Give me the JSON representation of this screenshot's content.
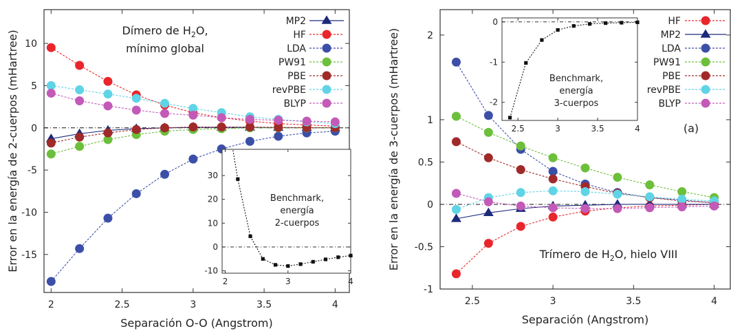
{
  "colors": {
    "MP2": "#1c2a7c",
    "HF": "#e8262b",
    "LDA": "#3c4fa8",
    "PW91": "#6cbf3a",
    "PBE": "#a02a2a",
    "revPBE": "#5fd4e6",
    "BLYP": "#c35ab8",
    "benchmark": "#111111"
  },
  "chart_data": [
    {
      "type": "line",
      "annotation": {
        "line1": "Dímero de H2O,",
        "line2": "mínimo global"
      },
      "xlabel": "Separación O-O (Angstrom)",
      "ylabel": "Error en la energía de 2-cuerpos (mHartree)",
      "xlim": [
        1.95,
        4.1
      ],
      "ylim": [
        -19.5,
        14
      ],
      "xticks": [
        "2",
        "2.5",
        "3",
        "3.5",
        "4"
      ],
      "yticks": [
        "-15",
        "-10",
        "-5",
        "0",
        "5",
        "10"
      ],
      "legend_position": "top-right",
      "x": [
        2.0,
        2.2,
        2.4,
        2.6,
        2.8,
        3.0,
        3.2,
        3.4,
        3.6,
        3.8,
        4.0
      ],
      "series": [
        {
          "name": "MP2",
          "marker": "triangle",
          "values": [
            -1.3,
            -0.7,
            -0.3,
            -0.1,
            0.0,
            0.05,
            0.05,
            0.05,
            0.03,
            0.02,
            0.01
          ]
        },
        {
          "name": "HF",
          "marker": "circle",
          "values": [
            9.5,
            7.4,
            5.5,
            3.9,
            2.7,
            1.8,
            1.2,
            0.8,
            0.5,
            0.35,
            0.2
          ]
        },
        {
          "name": "LDA",
          "marker": "circle",
          "values": [
            -18.2,
            -14.3,
            -10.7,
            -7.8,
            -5.5,
            -3.7,
            -2.5,
            -1.6,
            -1.0,
            -0.6,
            -0.4
          ]
        },
        {
          "name": "PW91",
          "marker": "circle",
          "values": [
            -3.1,
            -2.2,
            -1.4,
            -0.8,
            -0.4,
            -0.2,
            -0.1,
            0.0,
            0.0,
            0.0,
            0.0
          ]
        },
        {
          "name": "PBE",
          "marker": "circle",
          "values": [
            -1.8,
            -1.1,
            -0.6,
            -0.2,
            0.0,
            0.1,
            0.1,
            0.1,
            0.05,
            0.03,
            0.02
          ]
        },
        {
          "name": "revPBE",
          "marker": "circle",
          "values": [
            5.0,
            4.5,
            4.0,
            3.5,
            2.9,
            2.3,
            1.8,
            1.3,
            1.0,
            0.7,
            0.5
          ]
        },
        {
          "name": "BLYP",
          "marker": "circle",
          "values": [
            4.1,
            3.2,
            2.6,
            2.1,
            1.7,
            1.5,
            1.2,
            1.0,
            0.9,
            0.8,
            0.7
          ]
        }
      ],
      "inset": {
        "type": "line",
        "annotation": {
          "line1": "Benchmark,",
          "line2": "energía",
          "line3": "2-cuerpos"
        },
        "xlim": [
          1.95,
          4.0
        ],
        "ylim": [
          -11,
          41
        ],
        "xticks": [
          "2",
          "3",
          "4"
        ],
        "yticks": [
          "-10",
          "0",
          "10",
          "20",
          "30"
        ],
        "x": [
          2.0,
          2.2,
          2.4,
          2.6,
          2.8,
          3.0,
          3.2,
          3.4,
          3.6,
          3.8,
          4.0
        ],
        "values": [
          60,
          28.5,
          4.5,
          -5.0,
          -7.5,
          -8.0,
          -7.2,
          -6.2,
          -5.2,
          -4.3,
          -3.6
        ]
      }
    },
    {
      "type": "line",
      "annotation": {
        "text": "Trímero de H2O, hielo VIII"
      },
      "panel_label": "(a)",
      "xlabel": "Separación (Angstrom)",
      "ylabel": "Error en la energía de 3-cuerpos (mHartree)",
      "xlim": [
        2.3,
        4.1
      ],
      "ylim": [
        -1.0,
        2.3
      ],
      "xticks": [
        "2.5",
        "3",
        "3.5",
        "4"
      ],
      "yticks": [
        "-1",
        "-0.5",
        "0",
        "0.5",
        "1",
        "2"
      ],
      "legend_position": "top-right",
      "x": [
        2.4,
        2.6,
        2.8,
        3.0,
        3.2,
        3.4,
        3.6,
        3.8,
        4.0
      ],
      "series": [
        {
          "name": "HF",
          "marker": "circle",
          "values": [
            -0.82,
            -0.46,
            -0.26,
            -0.15,
            -0.08,
            -0.04,
            -0.02,
            -0.01,
            0.0
          ]
        },
        {
          "name": "MP2",
          "marker": "triangle",
          "values": [
            -0.17,
            -0.1,
            -0.05,
            -0.02,
            -0.01,
            0.0,
            0.0,
            0.0,
            0.0
          ]
        },
        {
          "name": "LDA",
          "marker": "circle",
          "values": [
            1.68,
            1.05,
            0.65,
            0.39,
            0.24,
            0.14,
            0.08,
            0.05,
            0.02
          ]
        },
        {
          "name": "PW91",
          "marker": "circle",
          "values": [
            1.04,
            0.85,
            0.69,
            0.55,
            0.43,
            0.32,
            0.23,
            0.15,
            0.08
          ]
        },
        {
          "name": "PBE",
          "marker": "circle",
          "values": [
            0.74,
            0.55,
            0.41,
            0.3,
            0.21,
            0.13,
            0.08,
            0.04,
            0.02
          ]
        },
        {
          "name": "revPBE",
          "marker": "circle",
          "values": [
            -0.06,
            0.08,
            0.14,
            0.16,
            0.15,
            0.12,
            0.09,
            0.06,
            0.04
          ]
        },
        {
          "name": "BLYP",
          "marker": "circle",
          "values": [
            0.13,
            0.03,
            -0.02,
            -0.04,
            -0.05,
            -0.05,
            -0.04,
            -0.03,
            -0.02
          ]
        }
      ],
      "inset": {
        "type": "line",
        "annotation": {
          "line1": "Benchmark,",
          "line2": "energía",
          "line3": "3-cuerpos"
        },
        "xlim": [
          2.3,
          4.0
        ],
        "ylim": [
          -2.45,
          0.1
        ],
        "xticks": [
          "2.5",
          "3",
          "3.5",
          "4"
        ],
        "yticks": [
          "-2",
          "-1",
          "0"
        ],
        "x": [
          2.4,
          2.6,
          2.8,
          3.0,
          3.2,
          3.4,
          3.6,
          3.8,
          4.0
        ],
        "values": [
          -2.38,
          -1.02,
          -0.45,
          -0.2,
          -0.1,
          -0.05,
          -0.03,
          -0.02,
          -0.01
        ]
      }
    }
  ]
}
